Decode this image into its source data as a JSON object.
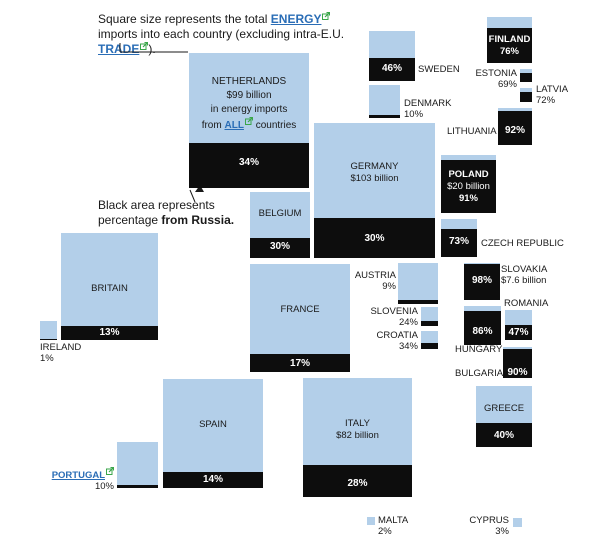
{
  "intro": {
    "line1": "Square size represents the total",
    "energy_link": "ENERGY",
    "line2": "imports into each country (excluding intra-E.U.",
    "trade_link": "TRADE",
    "after": ")."
  },
  "netherlands": {
    "name": "NETHERLANDS",
    "value": "$99 billion",
    "line2": "in energy imports",
    "from": "from",
    "all_link": "ALL",
    "countries": "countries"
  },
  "black_note": {
    "line1": "Black area represents",
    "line2": "percentage",
    "from_russia": "from Russia."
  },
  "colors": {
    "imports": "#b3cfe9",
    "russia": "#0d0d0d",
    "link": "#2a6db6",
    "link_icon": "#3aa64a"
  },
  "chart_data": {
    "type": "proportional area squares",
    "title": "",
    "encoding": "square size = total energy imports; black area = share from Russia",
    "series": [
      {
        "country": "NETHERLANDS",
        "imports": "$99 billion",
        "pct_label": "34%",
        "russia_share": 34
      },
      {
        "country": "GERMANY",
        "imports": "$103 billion",
        "pct_label": "30%",
        "russia_share": 30
      },
      {
        "country": "ITALY",
        "imports": "$82 billion",
        "pct_label": "28%",
        "russia_share": 28
      },
      {
        "country": "POLAND",
        "imports": "$20 billion",
        "pct_label": "91%",
        "russia_share": 91
      },
      {
        "country": "SLOVAKIA",
        "imports": "$7.6 billion",
        "pct_label": "98%",
        "russia_share": 98
      },
      {
        "country": "FINLAND",
        "imports": "",
        "pct_label": "76%",
        "russia_share": 76
      },
      {
        "country": "SWEDEN",
        "imports": "",
        "pct_label": "46%",
        "russia_share": 46
      },
      {
        "country": "DENMARK",
        "imports": "",
        "pct_label": "10%",
        "russia_share": 10
      },
      {
        "country": "ESTONIA",
        "imports": "",
        "pct_label": "69%",
        "russia_share": 69
      },
      {
        "country": "LATVIA",
        "imports": "",
        "pct_label": "72%",
        "russia_share": 72
      },
      {
        "country": "LITHUANIA",
        "imports": "",
        "pct_label": "92%",
        "russia_share": 92
      },
      {
        "country": "BELGIUM",
        "imports": "",
        "pct_label": "30%",
        "russia_share": 30
      },
      {
        "country": "CZECH REPUBLIC",
        "imports": "",
        "pct_label": "73%",
        "russia_share": 73
      },
      {
        "country": "BRITAIN",
        "imports": "",
        "pct_label": "13%",
        "russia_share": 13
      },
      {
        "country": "IRELAND",
        "imports": "",
        "pct_label": "1%",
        "russia_share": 1
      },
      {
        "country": "FRANCE",
        "imports": "",
        "pct_label": "17%",
        "russia_share": 17
      },
      {
        "country": "AUSTRIA",
        "imports": "",
        "pct_label": "9%",
        "russia_share": 9
      },
      {
        "country": "SLOVENIA",
        "imports": "",
        "pct_label": "24%",
        "russia_share": 24
      },
      {
        "country": "CROATIA",
        "imports": "",
        "pct_label": "34%",
        "russia_share": 34
      },
      {
        "country": "ROMANIA",
        "imports": "",
        "pct_label": "47%",
        "russia_share": 47
      },
      {
        "country": "HUNGARY",
        "imports": "",
        "pct_label": "86%",
        "russia_share": 86
      },
      {
        "country": "BULGARIA",
        "imports": "",
        "pct_label": "90%",
        "russia_share": 90
      },
      {
        "country": "GREECE",
        "imports": "",
        "pct_label": "40%",
        "russia_share": 40
      },
      {
        "country": "SPAIN",
        "imports": "",
        "pct_label": "14%",
        "russia_share": 14
      },
      {
        "country": "PORTUGAL",
        "imports": "",
        "pct_label": "10%",
        "russia_share": 10
      },
      {
        "country": "MALTA",
        "imports": "",
        "pct_label": "2%",
        "russia_share": 2
      },
      {
        "country": "CYPRUS",
        "imports": "",
        "pct_label": "3%",
        "russia_share": 3
      }
    ]
  }
}
